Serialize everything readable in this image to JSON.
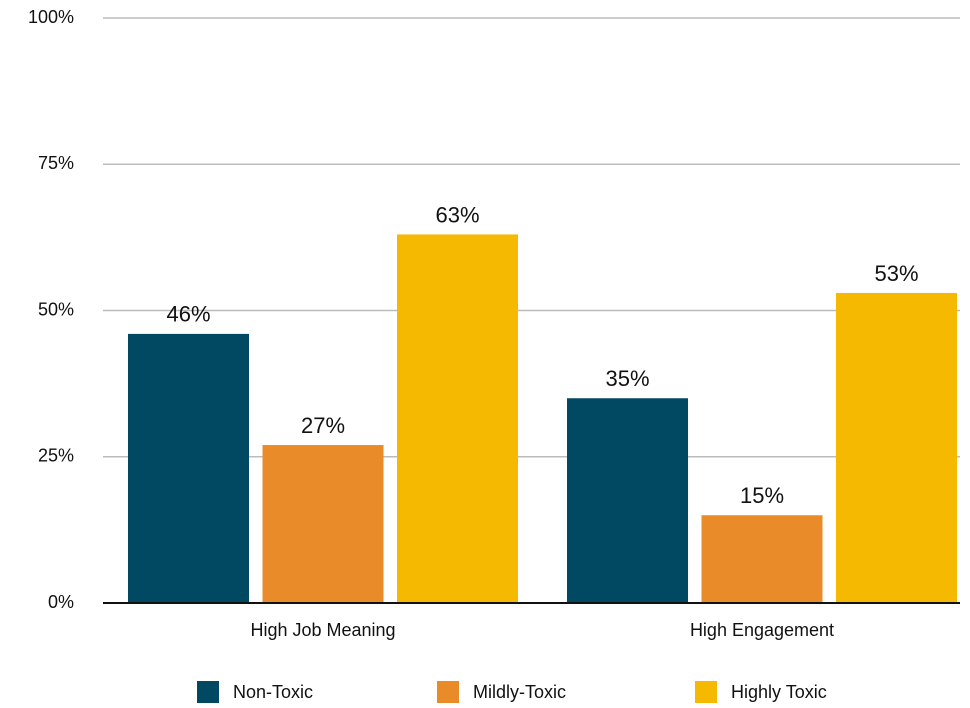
{
  "chart_data": {
    "type": "bar",
    "categories": [
      "High Job Meaning",
      "High Engagement"
    ],
    "series": [
      {
        "name": "Non-Toxic",
        "color": "#014862",
        "values": [
          46,
          35
        ],
        "value_labels": [
          "46%",
          "35%"
        ]
      },
      {
        "name": "Mildly-Toxic",
        "color": "#e88b28",
        "values": [
          27,
          15
        ],
        "value_labels": [
          "27%",
          "15%"
        ]
      },
      {
        "name": "Highly Toxic",
        "color": "#f5b902",
        "values": [
          63,
          53
        ],
        "value_labels": [
          "63%",
          "53%"
        ]
      }
    ],
    "ylim": [
      0,
      100
    ],
    "yticks": [
      {
        "value": 0,
        "label": "0%"
      },
      {
        "value": 25,
        "label": "25%"
      },
      {
        "value": 50,
        "label": "50%"
      },
      {
        "value": 75,
        "label": "75%"
      },
      {
        "value": 100,
        "label": "100%"
      }
    ],
    "grid": true,
    "legend": "bottom"
  }
}
